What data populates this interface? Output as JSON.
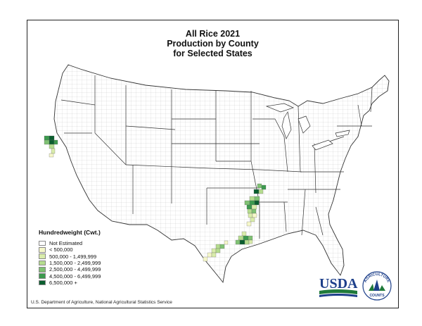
{
  "title": {
    "line1": "All Rice 2021",
    "line2": "Production by County",
    "line3": "for Selected States"
  },
  "legend": {
    "title": "Hundredweight (Cwt.)",
    "items": [
      {
        "label": "Not Estimated",
        "color": "#ffffff"
      },
      {
        "label": "< 500,000",
        "color": "#f5f7c9"
      },
      {
        "label": "500,000 - 1,499,999",
        "color": "#d9ecaa"
      },
      {
        "label": "1,500,000 - 2,499,999",
        "color": "#b5dc8e"
      },
      {
        "label": "2,500,000 - 4,499,999",
        "color": "#7fc173"
      },
      {
        "label": "4,500,000 - 6,499,999",
        "color": "#3c9a4e"
      },
      {
        "label": "6,500,000 +",
        "color": "#0b5e2f"
      }
    ]
  },
  "source": "U.S. Department of Agriculture, National Agricultural Statistics Service",
  "logo": {
    "text": "USDA",
    "arc_text": "AGRICULTURE",
    "sub_text": "COUNTS",
    "colors": {
      "blue": "#1d3f8a",
      "green": "#1f7a3a"
    }
  }
}
